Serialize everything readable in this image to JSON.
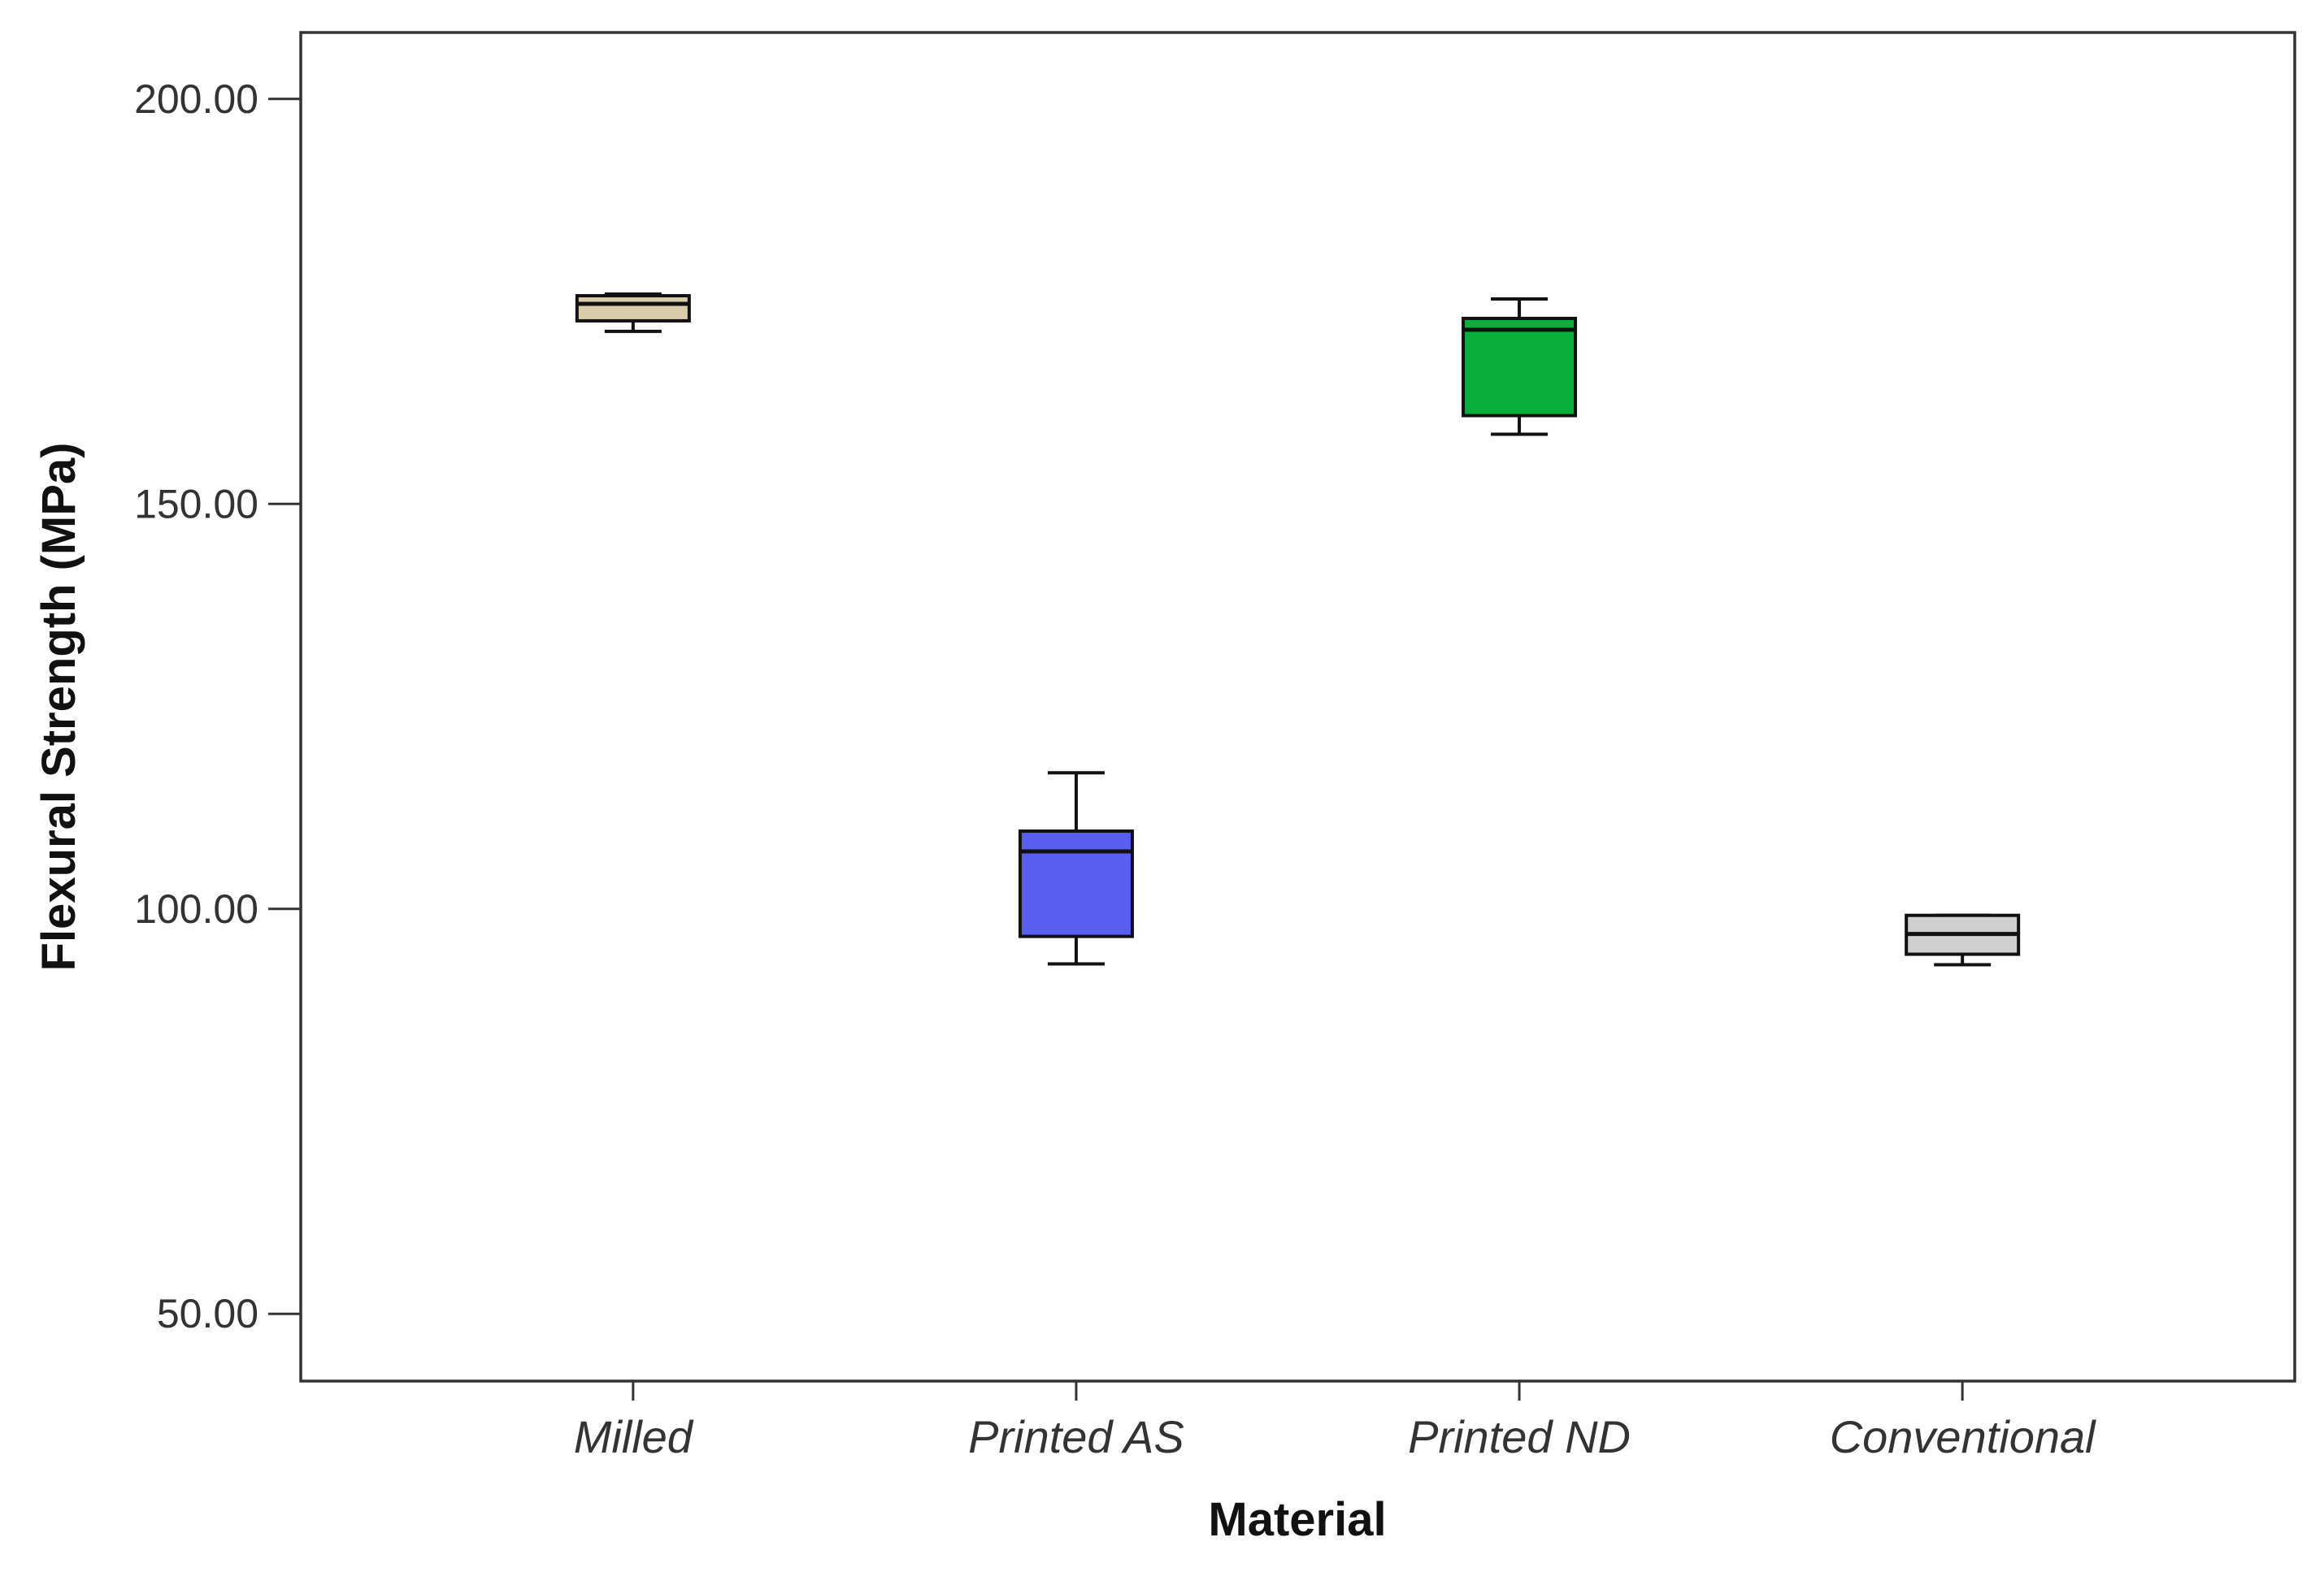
{
  "chart_data": {
    "type": "box",
    "title": "",
    "xlabel": "Material",
    "ylabel": "Flexural Strength (MPa)",
    "ylim": [
      41.7,
      208.2
    ],
    "yticks": [
      50,
      100,
      150,
      200
    ],
    "ytick_labels": [
      "50.00",
      "100.00",
      "150.00",
      "200.00"
    ],
    "grid": false,
    "categories": [
      "Milled",
      "Printed AS",
      "Printed ND",
      "Conventional"
    ],
    "boxes": [
      {
        "category": "Milled",
        "min": 171.3,
        "q1": 172.6,
        "median": 174.7,
        "q3": 175.7,
        "max": 175.9,
        "color": "#d9ccaa"
      },
      {
        "category": "Printed AS",
        "min": 93.2,
        "q1": 96.6,
        "median": 107.1,
        "q3": 109.6,
        "max": 116.8,
        "color": "#5a5ef0"
      },
      {
        "category": "Printed ND",
        "min": 158.6,
        "q1": 160.9,
        "median": 171.5,
        "q3": 172.9,
        "max": 175.3,
        "color": "#0aae3c"
      },
      {
        "category": "Conventional",
        "min": 93.1,
        "q1": 94.4,
        "median": 96.9,
        "q3": 99.2,
        "max": 99.2,
        "color": "#cfcfcf"
      }
    ]
  }
}
